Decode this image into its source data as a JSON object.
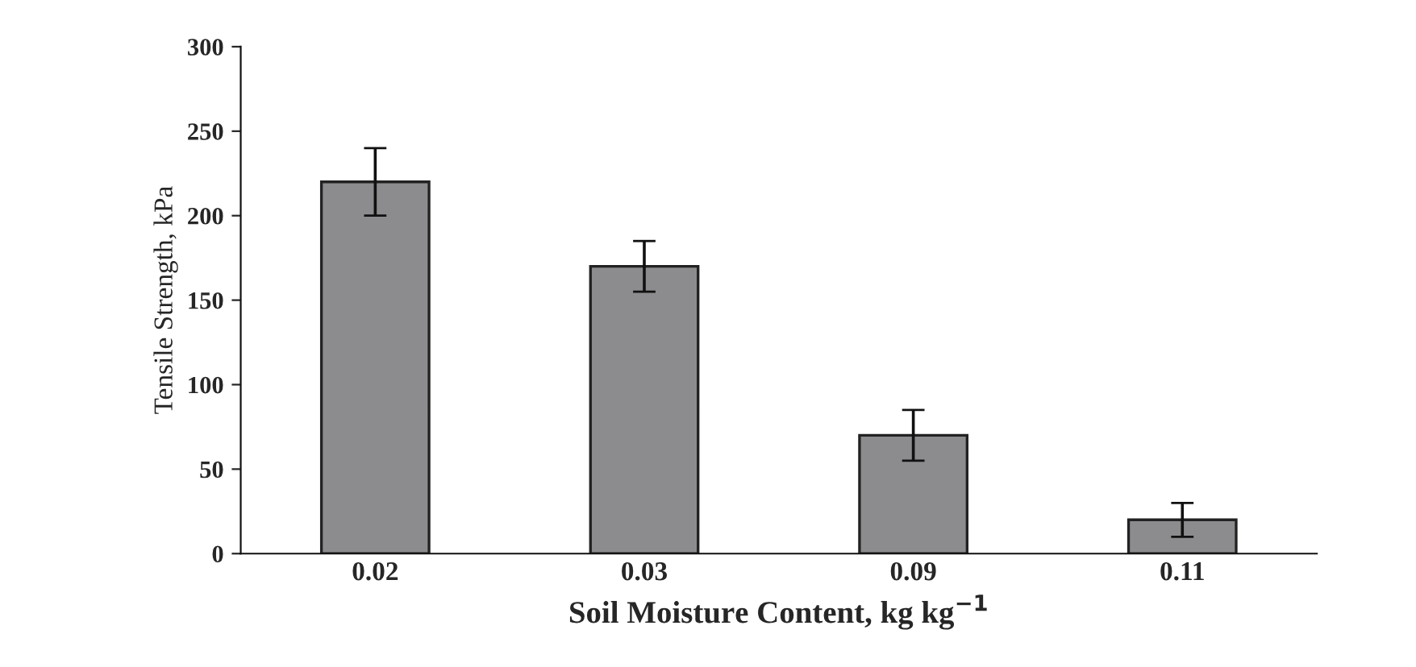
{
  "chart_data": {
    "type": "bar",
    "xlabel": "Soil Moisture Content, kg kg$^{−1}$",
    "ylabel": "Tensile Strength, kPa",
    "categories": [
      "0.02",
      "0.03",
      "0.09",
      "0.11"
    ],
    "values": [
      220,
      170,
      70,
      20
    ],
    "errors": [
      20,
      15,
      15,
      10
    ],
    "color": "#8c8b8e",
    "ylim": [
      0,
      300
    ],
    "yticks": [
      0,
      50,
      100,
      150,
      200,
      250,
      300
    ],
    "grid": false
  }
}
